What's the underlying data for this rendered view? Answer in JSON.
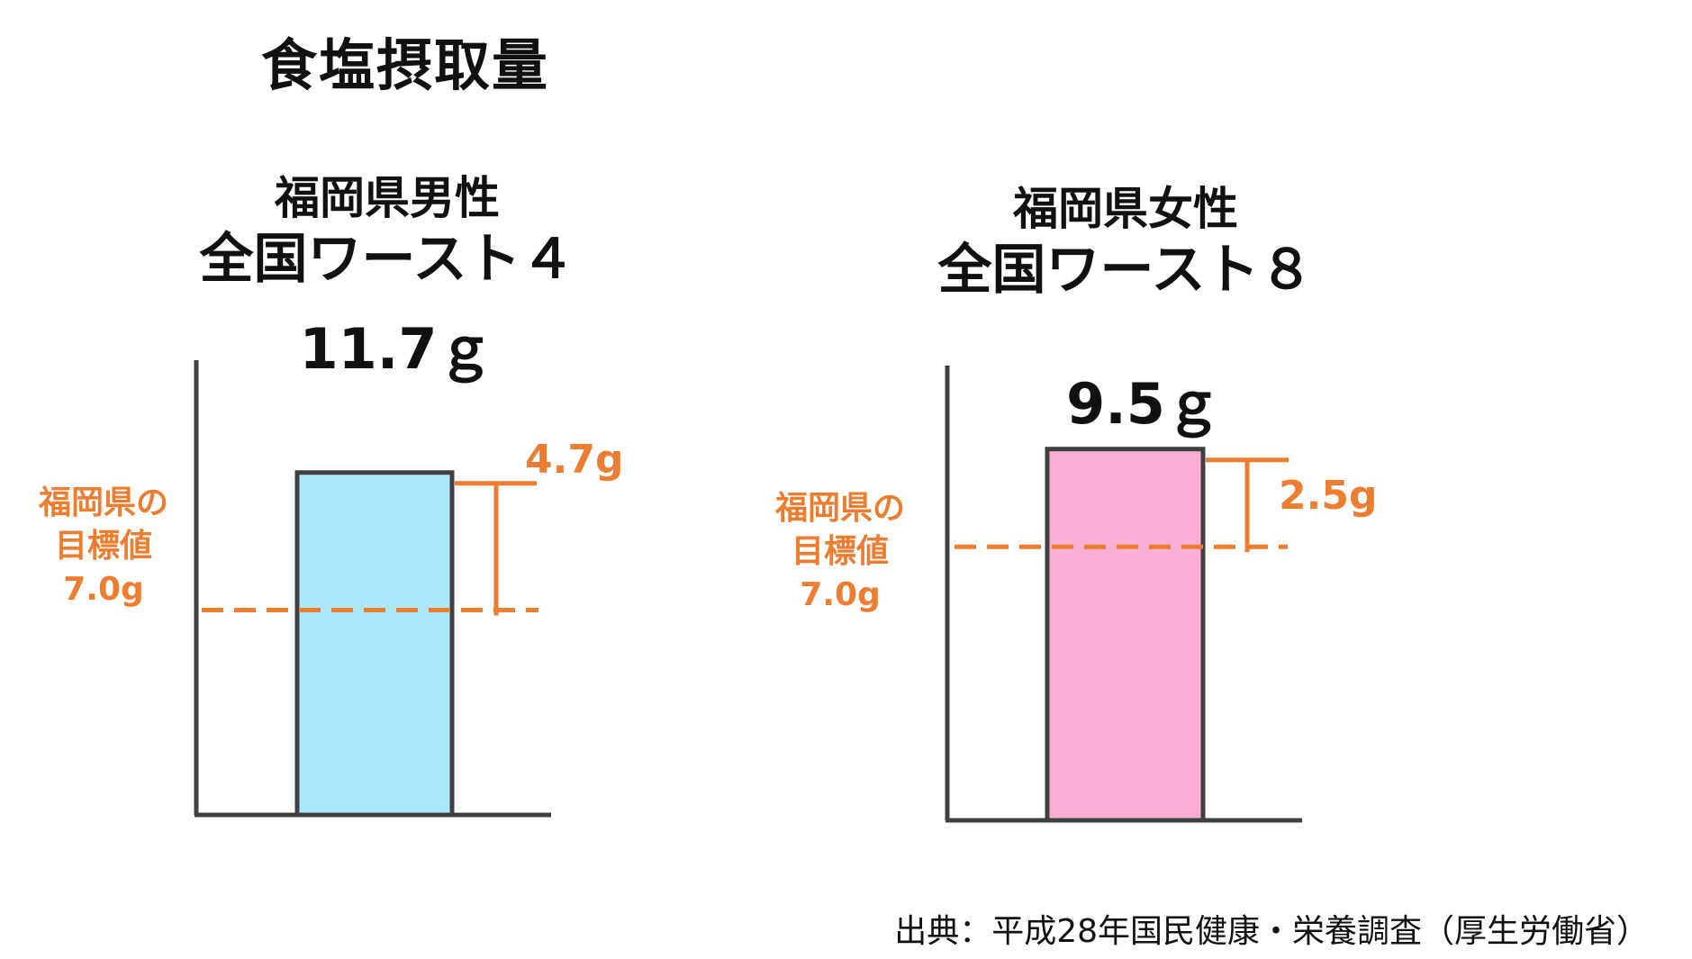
{
  "title": "食塩摂取量",
  "source": "出典：平成28年国民健康・栄養調査（厚生労働省）",
  "colors": {
    "accent": "#ED7D31",
    "axis": "#404040",
    "male_bar": "#ABE8FA",
    "female_bar": "#FCAFD4"
  },
  "chart_data": [
    {
      "type": "bar",
      "heading": [
        "福岡県男性",
        "全国ワースト４"
      ],
      "value": 11.7,
      "value_label": "11.7ｇ",
      "target": 7.0,
      "target_label": [
        "福岡県の",
        "目標値",
        "7.0g"
      ],
      "difference": 4.7,
      "difference_label": "4.7g",
      "bar_color": "#ABE8FA"
    },
    {
      "type": "bar",
      "heading": [
        "福岡県女性",
        "全国ワースト８"
      ],
      "value": 9.5,
      "value_label": "9.5ｇ",
      "target": 7.0,
      "target_label": [
        "福岡県の",
        "目標値",
        "7.0g"
      ],
      "difference": 2.5,
      "difference_label": "2.5g",
      "bar_color": "#FCAFD4"
    }
  ]
}
